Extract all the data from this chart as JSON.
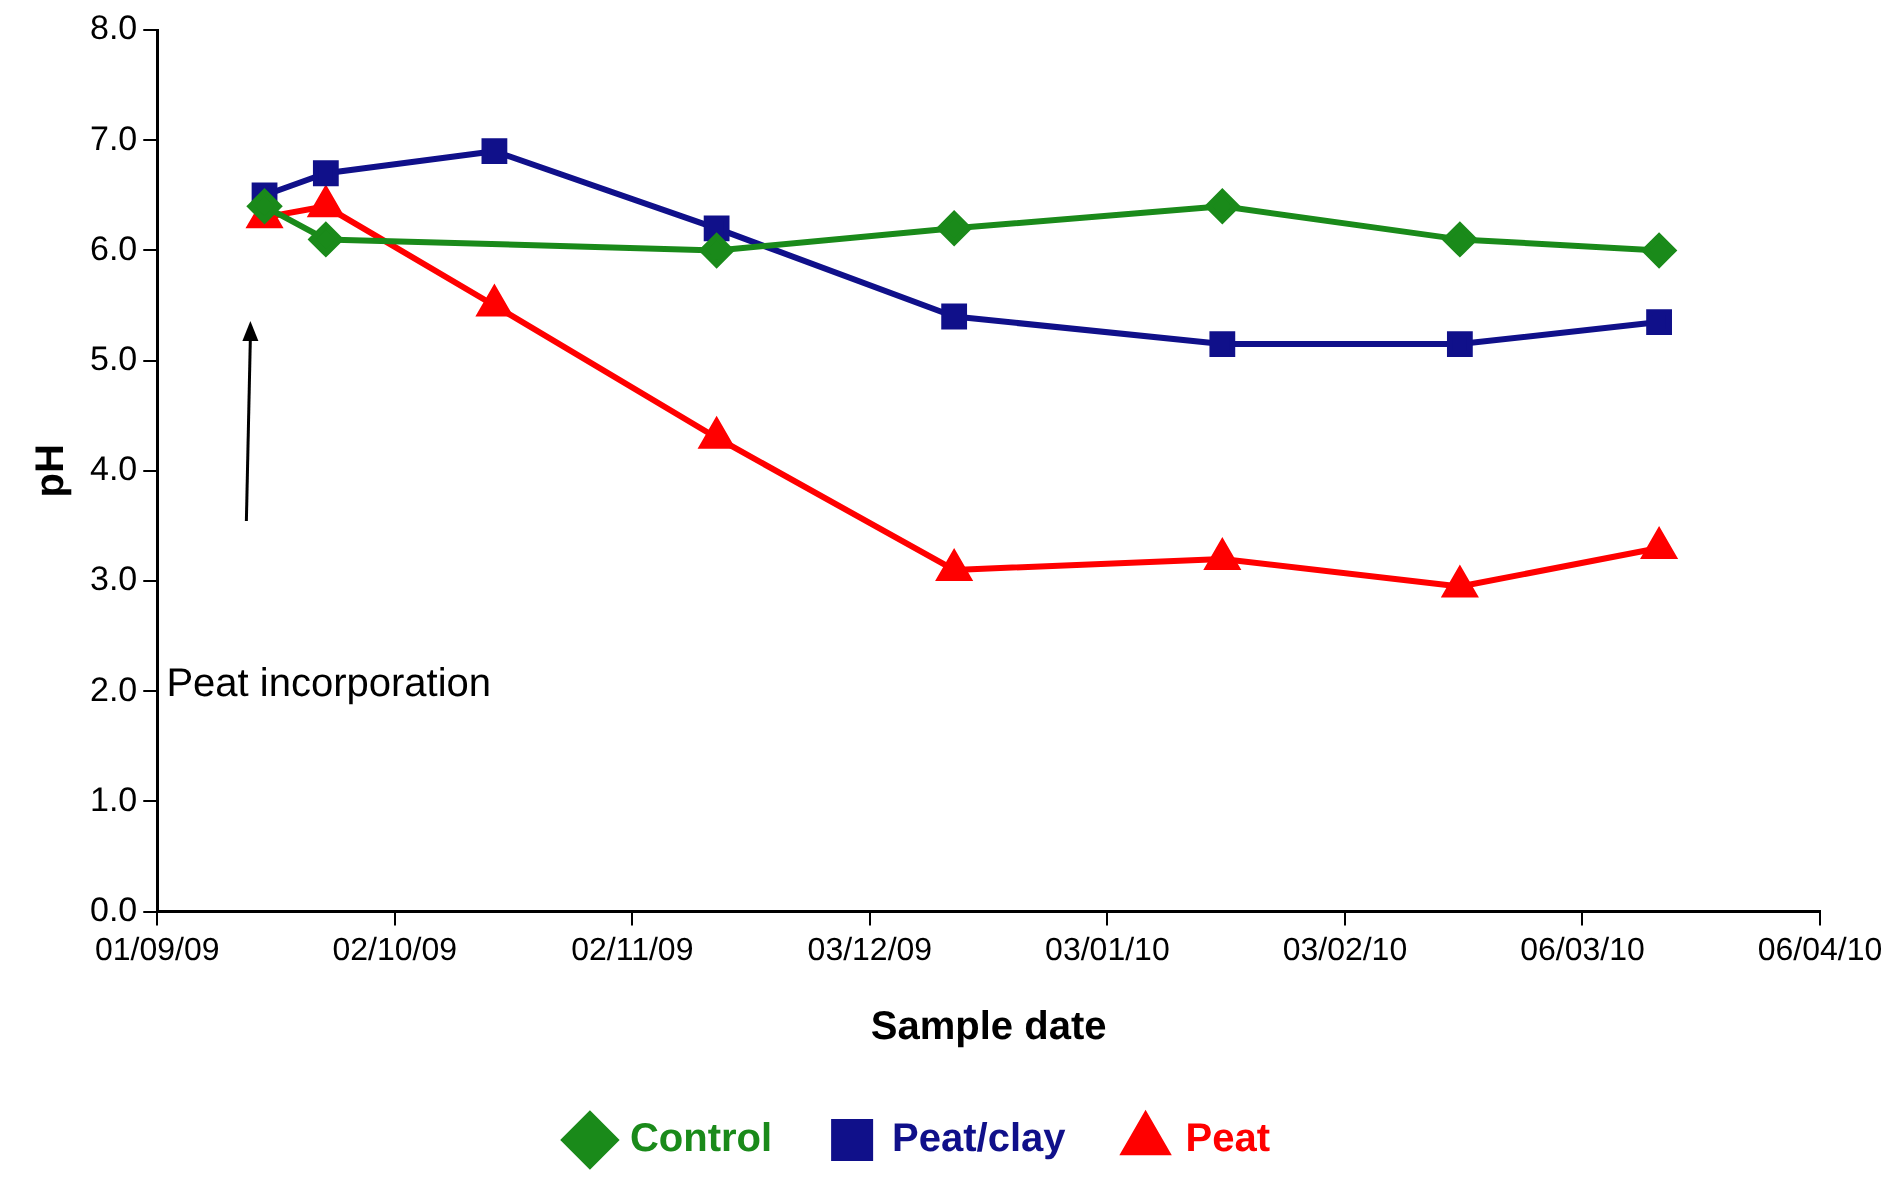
{
  "chart_data": {
    "type": "line",
    "xlabel": "Sample date",
    "ylabel": "pH",
    "xlim": [
      "2009-09-01",
      "2010-04-06"
    ],
    "xticks": [
      {
        "value": "2009-09-01",
        "label": "01/09/09"
      },
      {
        "value": "2009-10-02",
        "label": "02/10/09"
      },
      {
        "value": "2009-11-02",
        "label": "02/11/09"
      },
      {
        "value": "2009-12-03",
        "label": "03/12/09"
      },
      {
        "value": "2010-01-03",
        "label": "03/01/10"
      },
      {
        "value": "2010-02-03",
        "label": "03/02/10"
      },
      {
        "value": "2010-03-06",
        "label": "06/03/10"
      },
      {
        "value": "2010-04-06",
        "label": "06/04/10"
      }
    ],
    "ylim": [
      0,
      8
    ],
    "yticks": [
      {
        "value": 0,
        "label": "0.0"
      },
      {
        "value": 1,
        "label": "1.0"
      },
      {
        "value": 2,
        "label": "2.0"
      },
      {
        "value": 3,
        "label": "3.0"
      },
      {
        "value": 4,
        "label": "4.0"
      },
      {
        "value": 5,
        "label": "5.0"
      },
      {
        "value": 6,
        "label": "6.0"
      },
      {
        "value": 7,
        "label": "7.0"
      },
      {
        "value": 8,
        "label": "8.0"
      }
    ],
    "grid": false,
    "legend": "bottom",
    "line_style": "solid",
    "annotations": [
      "Peat incorporation"
    ],
    "series": [
      {
        "name": "Control",
        "color": "#1a8a1a",
        "marker": "diamond",
        "x": [
          "2009-09-15",
          "2009-09-23",
          "2009-11-13",
          "2009-12-14",
          "2010-01-18",
          "2010-02-18",
          "2010-03-16"
        ],
        "values": [
          6.4,
          6.1,
          6.0,
          6.2,
          6.4,
          6.1,
          6.0
        ]
      },
      {
        "name": "Peat/clay",
        "color": "#10108a",
        "marker": "square",
        "x": [
          "2009-09-15",
          "2009-09-23",
          "2009-10-15",
          "2009-11-13",
          "2009-12-14",
          "2010-01-18",
          "2010-02-18",
          "2010-03-16"
        ],
        "values": [
          6.5,
          6.7,
          6.9,
          6.2,
          5.4,
          5.15,
          5.15,
          5.35
        ]
      },
      {
        "name": "Peat",
        "color": "#ff0000",
        "marker": "triangle",
        "x": [
          "2009-09-15",
          "2009-09-23",
          "2009-10-15",
          "2009-11-13",
          "2009-12-14",
          "2010-01-18",
          "2010-02-18",
          "2010-03-16"
        ],
        "values": [
          6.3,
          6.4,
          5.5,
          4.3,
          3.1,
          3.2,
          2.95,
          3.3
        ]
      }
    ]
  }
}
